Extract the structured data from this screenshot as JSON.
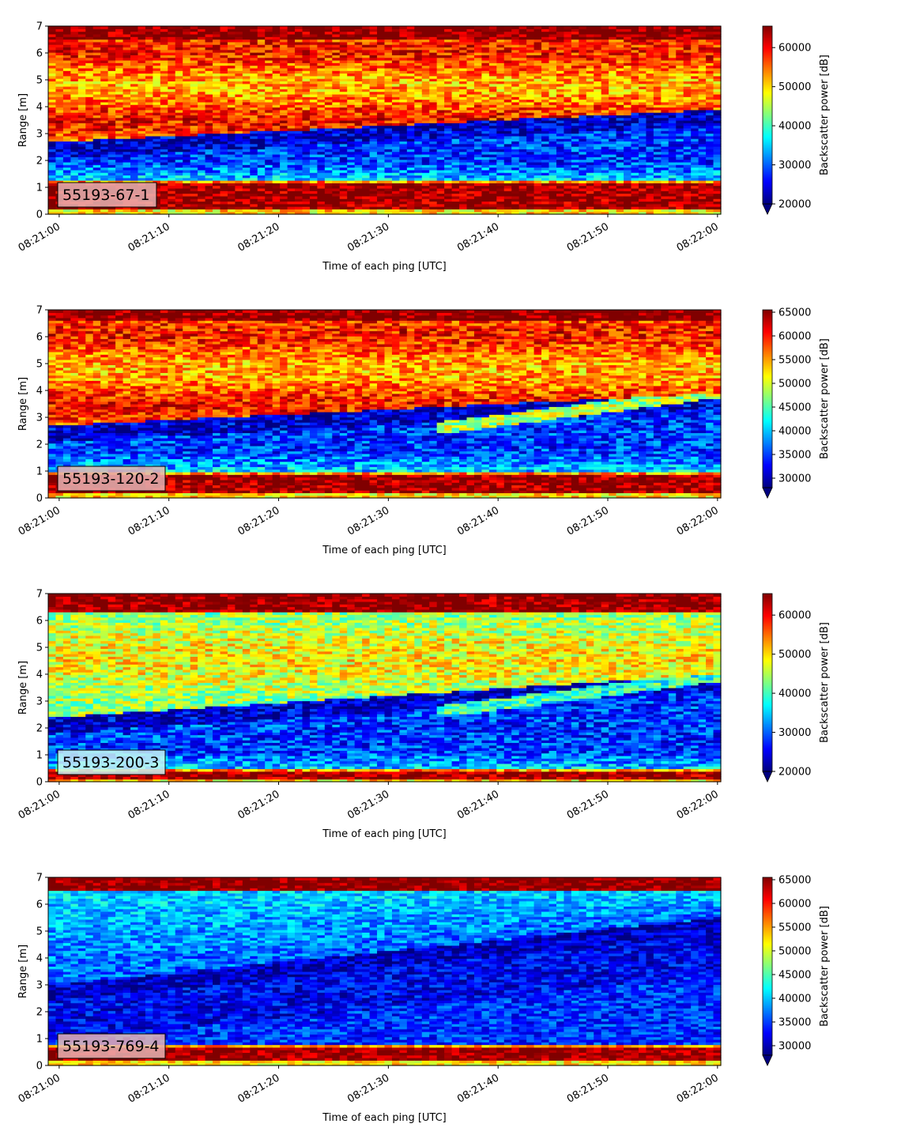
{
  "figure": {
    "panels_count": 4
  },
  "chart_data": [
    {
      "type": "heatmap",
      "label": "55193-67-1",
      "label_bg": "#e8b4b4",
      "xlabel": "Time of each ping [UTC]",
      "ylabel": "Range [m]",
      "x_ticks": [
        "08:21:00",
        "08:21:10",
        "08:21:20",
        "08:21:30",
        "08:21:40",
        "08:21:50",
        "08:22:00"
      ],
      "x_range_s": [
        -1,
        60.3
      ],
      "y_ticks": [
        0,
        1,
        2,
        3,
        4,
        5,
        6,
        7
      ],
      "ylim": [
        0,
        7
      ],
      "colorbar": {
        "label": "Backscatter power [dB]",
        "ticks": [
          20000,
          30000,
          40000,
          50000,
          60000
        ],
        "vmin": 20000,
        "vmax": 65500,
        "extend": "min",
        "cmap": "jet"
      },
      "profile": "strong",
      "layers": {
        "transducer_top_m": 1.15,
        "edge_band_m": [
          0.2,
          1.15
        ],
        "blue_zone_top_start_m": 2.7,
        "blue_zone_top_end_m": 3.9,
        "surface_band_m": 6.55,
        "mid_reflector": false
      }
    },
    {
      "type": "heatmap",
      "label": "55193-120-2",
      "label_bg": "#e8b4b4",
      "xlabel": "Time of each ping [UTC]",
      "ylabel": "Range [m]",
      "x_ticks": [
        "08:21:00",
        "08:21:10",
        "08:21:20",
        "08:21:30",
        "08:21:40",
        "08:21:50",
        "08:22:00"
      ],
      "x_range_s": [
        -1,
        60.3
      ],
      "y_ticks": [
        0,
        1,
        2,
        3,
        4,
        5,
        6,
        7
      ],
      "ylim": [
        0,
        7
      ],
      "colorbar": {
        "label": "Backscatter power [dB]",
        "ticks": [
          30000,
          35000,
          40000,
          45000,
          50000,
          55000,
          60000,
          65000
        ],
        "vmin": 28000,
        "vmax": 65500,
        "extend": "min",
        "cmap": "jet"
      },
      "profile": "strong",
      "layers": {
        "transducer_top_m": 0.9,
        "edge_band_m": [
          0.2,
          0.9
        ],
        "blue_zone_top_start_m": 2.7,
        "blue_zone_top_end_m": 3.9,
        "surface_band_m": 6.6,
        "mid_reflector": true
      }
    },
    {
      "type": "heatmap",
      "label": "55193-200-3",
      "label_bg": "#c8f4f4",
      "xlabel": "Time of each ping [UTC]",
      "ylabel": "Range [m]",
      "x_ticks": [
        "08:21:00",
        "08:21:10",
        "08:21:20",
        "08:21:30",
        "08:21:40",
        "08:21:50",
        "08:22:00"
      ],
      "x_range_s": [
        -1,
        60.3
      ],
      "y_ticks": [
        0,
        1,
        2,
        3,
        4,
        5,
        6,
        7
      ],
      "ylim": [
        0,
        7
      ],
      "colorbar": {
        "label": "Backscatter power [dB]",
        "ticks": [
          20000,
          30000,
          40000,
          50000,
          60000
        ],
        "vmin": 20000,
        "vmax": 65500,
        "extend": "min",
        "cmap": "jet"
      },
      "profile": "medium",
      "layers": {
        "transducer_top_m": 0.35,
        "edge_band_m": [
          0.1,
          0.35
        ],
        "blue_zone_top_start_m": 2.4,
        "blue_zone_top_end_m": 4.0,
        "surface_band_m": 6.3,
        "mid_reflector": true
      }
    },
    {
      "type": "heatmap",
      "label": "55193-769-4",
      "label_bg": "#e8b4b4",
      "xlabel": "Time of each ping [UTC]",
      "ylabel": "Range [m]",
      "x_ticks": [
        "08:21:00",
        "08:21:10",
        "08:21:20",
        "08:21:30",
        "08:21:40",
        "08:21:50",
        "08:22:00"
      ],
      "x_range_s": [
        -1,
        60.3
      ],
      "y_ticks": [
        0,
        1,
        2,
        3,
        4,
        5,
        6,
        7
      ],
      "ylim": [
        0,
        7
      ],
      "colorbar": {
        "label": "Backscatter power [dB]",
        "ticks": [
          30000,
          35000,
          40000,
          45000,
          50000,
          55000,
          60000,
          65000
        ],
        "vmin": 28000,
        "vmax": 65500,
        "extend": "min",
        "cmap": "jet"
      },
      "profile": "weak",
      "layers": {
        "transducer_top_m": 0.7,
        "edge_band_m": [
          0.2,
          0.7
        ],
        "blue_zone_top_start_m": 3.0,
        "blue_zone_top_end_m": 5.5,
        "surface_band_m": 6.55,
        "mid_reflector": false
      }
    }
  ]
}
